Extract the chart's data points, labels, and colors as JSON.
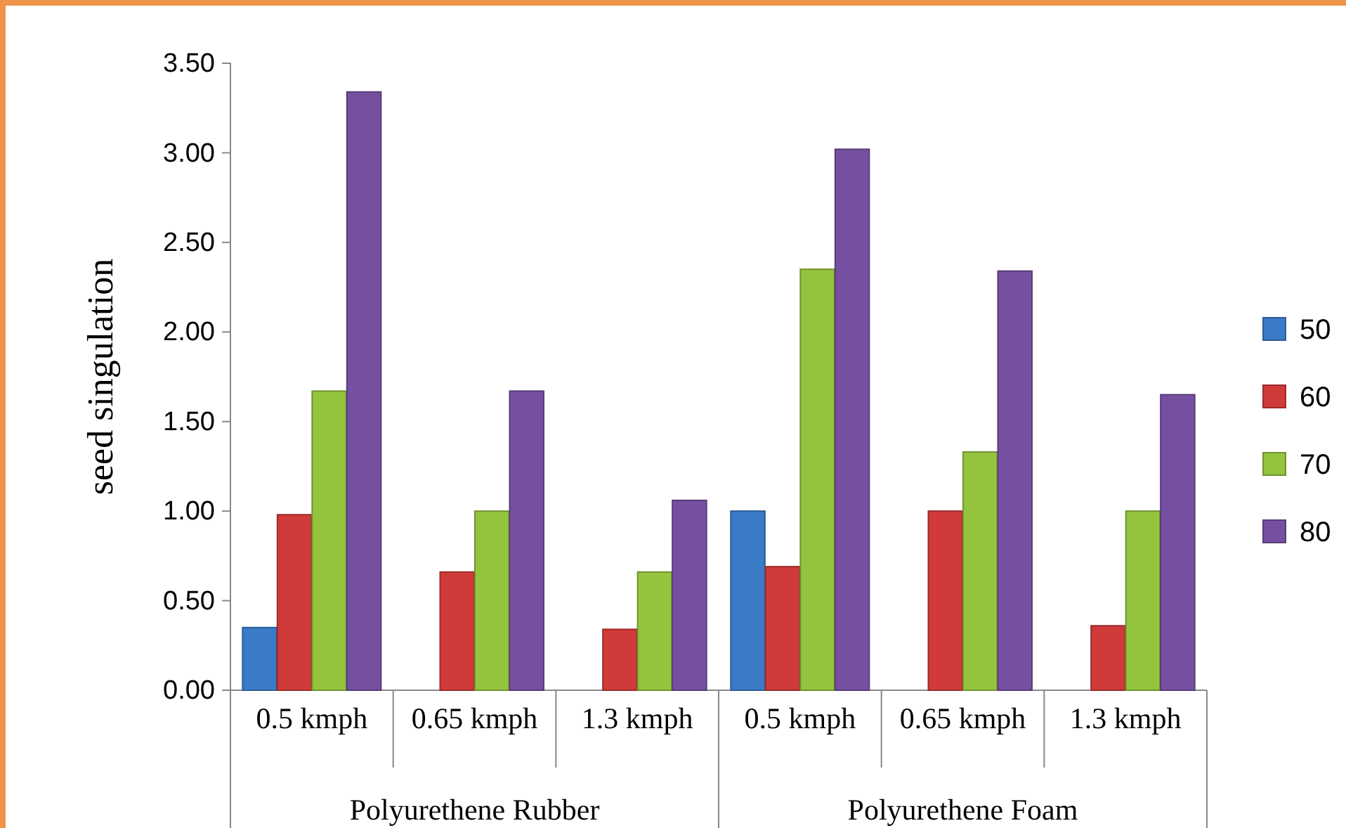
{
  "chart_data": {
    "type": "bar",
    "ylabel": "seed singulation",
    "categories": [
      "0.5 kmph",
      "0.65 kmph",
      "1.3 kmph",
      "0.5 kmph",
      "0.65 kmph",
      "1.3 kmph"
    ],
    "annotations": [
      "Polyurethene Rubber",
      "Polyurethene Foam"
    ],
    "series": [
      {
        "name": "50",
        "color": "#3a7bc8",
        "values": [
          0.35,
          null,
          null,
          1.0,
          null,
          null
        ]
      },
      {
        "name": "60",
        "color": "#d03a38",
        "values": [
          0.98,
          0.66,
          0.34,
          0.69,
          1.0,
          0.36
        ]
      },
      {
        "name": "70",
        "color": "#94c43e",
        "values": [
          1.67,
          1.0,
          0.66,
          2.35,
          1.33,
          1.0
        ]
      },
      {
        "name": "80",
        "color": "#7650a0",
        "values": [
          3.34,
          1.67,
          1.06,
          3.02,
          2.34,
          1.65
        ]
      }
    ],
    "ylim": [
      0,
      3.5
    ],
    "yticks": [
      {
        "value": 0,
        "label": "0.00"
      },
      {
        "value": 0.5,
        "label": "0.50"
      },
      {
        "value": 1,
        "label": "1.00"
      },
      {
        "value": 1.5,
        "label": "1.50"
      },
      {
        "value": 2,
        "label": "2.00"
      },
      {
        "value": 2.5,
        "label": "2.50"
      },
      {
        "value": 3,
        "label": "3.00"
      },
      {
        "value": 3.5,
        "label": "3.50"
      }
    ],
    "grid": false,
    "legend": "right"
  }
}
